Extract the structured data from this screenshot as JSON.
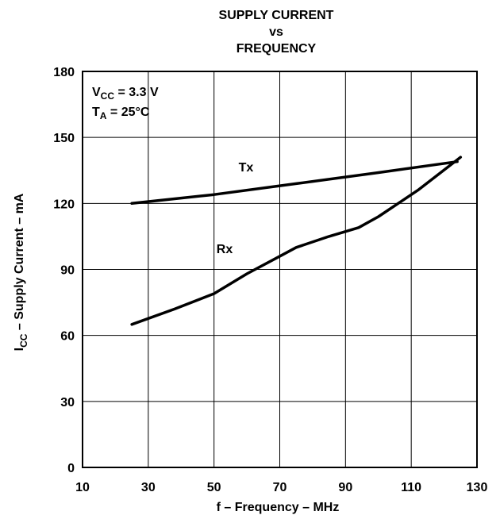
{
  "chart_data": {
    "type": "line",
    "title_lines": [
      "SUPPLY CURRENT",
      "vs",
      "FREQUENCY"
    ],
    "xlabel": "f – Frequency – MHz",
    "ylabel": {
      "main": "I",
      "sub": "CC",
      "rest": " – Supply Current – mA"
    },
    "xlim": [
      10,
      130
    ],
    "ylim": [
      0,
      180
    ],
    "xticks": [
      10,
      30,
      50,
      70,
      90,
      110,
      130
    ],
    "yticks": [
      0,
      30,
      60,
      90,
      120,
      150,
      180
    ],
    "grid": true,
    "conditions": [
      {
        "main": "V",
        "sub": "CC",
        "rest": " = 3.3 V"
      },
      {
        "main": "T",
        "sub": "A",
        "rest": " = 25°C"
      }
    ],
    "series": [
      {
        "name": "Tx",
        "x": [
          25,
          50,
          75,
          100,
          124
        ],
        "y": [
          120,
          124,
          129,
          134,
          139
        ]
      },
      {
        "name": "Rx",
        "x": [
          25,
          38,
          50,
          60,
          70,
          75,
          85,
          94,
          100,
          112,
          125
        ],
        "y": [
          65,
          72,
          79,
          88,
          96,
          100,
          105,
          109,
          114,
          126,
          141
        ]
      }
    ]
  }
}
